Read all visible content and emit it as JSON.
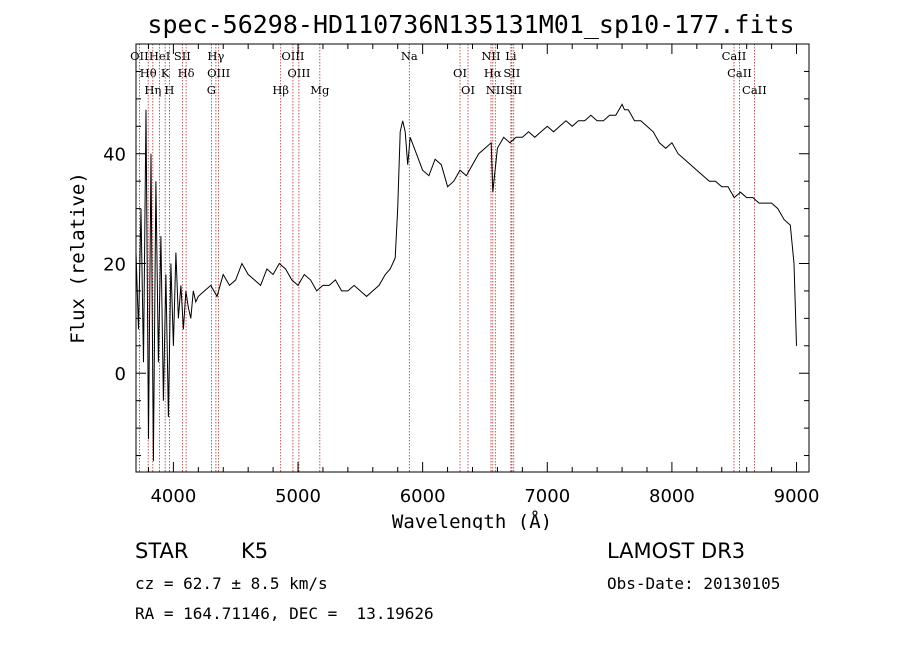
{
  "chart_data": {
    "type": "line",
    "title": "spec-56298-HD110736N135131M01_sp10-177.fits",
    "xlabel": "Wavelength (Å)",
    "ylabel": "Flux (relative)",
    "xlim": [
      3700,
      9100
    ],
    "ylim": [
      -18,
      60
    ],
    "xticks": [
      4000,
      5000,
      6000,
      7000,
      8000,
      9000
    ],
    "yticks": [
      0,
      20,
      40
    ],
    "series": [
      {
        "x": [
          3700,
          3720,
          3740,
          3760,
          3780,
          3800,
          3820,
          3840,
          3860,
          3880,
          3900,
          3920,
          3940,
          3960,
          3980,
          4000,
          4020,
          4040,
          4060,
          4080,
          4100,
          4120,
          4140,
          4160,
          4180,
          4200,
          4250,
          4300,
          4350,
          4400,
          4450,
          4500,
          4550,
          4600,
          4650,
          4700,
          4750,
          4800,
          4850,
          4900,
          4950,
          5000,
          5050,
          5100,
          5150,
          5200,
          5250,
          5300,
          5350,
          5400,
          5450,
          5500,
          5550,
          5600,
          5650,
          5700,
          5740,
          5780,
          5800,
          5820,
          5840,
          5860,
          5880,
          5900,
          5950,
          6000,
          6050,
          6100,
          6150,
          6200,
          6250,
          6300,
          6350,
          6400,
          6450,
          6500,
          6550,
          6563,
          6600,
          6650,
          6700,
          6750,
          6800,
          6850,
          6900,
          6950,
          7000,
          7050,
          7100,
          7150,
          7200,
          7250,
          7300,
          7350,
          7400,
          7450,
          7500,
          7550,
          7600,
          7620,
          7650,
          7700,
          7750,
          7800,
          7850,
          7900,
          7950,
          8000,
          8050,
          8100,
          8150,
          8200,
          8250,
          8300,
          8350,
          8400,
          8450,
          8500,
          8550,
          8600,
          8650,
          8700,
          8750,
          8800,
          8850,
          8900,
          8950,
          8980,
          9000
        ],
        "y": [
          22,
          8,
          30,
          2,
          48,
          -12,
          40,
          -16,
          35,
          2,
          25,
          -5,
          18,
          -8,
          20,
          5,
          22,
          10,
          16,
          8,
          15,
          12,
          10,
          15,
          13,
          14,
          15,
          16,
          14,
          18,
          16,
          17,
          20,
          18,
          17,
          16,
          19,
          18,
          20,
          19,
          17,
          16,
          18,
          17,
          15,
          16,
          16,
          17,
          15,
          15,
          16,
          15,
          14,
          15,
          16,
          18,
          19,
          21,
          30,
          44,
          46,
          44,
          38,
          43,
          40,
          37,
          36,
          39,
          38,
          34,
          35,
          37,
          36,
          38,
          40,
          41,
          42,
          33,
          41,
          43,
          42,
          43,
          43,
          44,
          43,
          44,
          45,
          44,
          45,
          46,
          45,
          46,
          46,
          47,
          46,
          46,
          47,
          47,
          49,
          48,
          48,
          46,
          46,
          45,
          44,
          42,
          41,
          42,
          40,
          39,
          38,
          37,
          36,
          35,
          35,
          34,
          34,
          32,
          33,
          32,
          32,
          31,
          31,
          31,
          30,
          28,
          27,
          20,
          5
        ]
      }
    ],
    "line_markers": [
      {
        "w": 3727,
        "label": "OII"
      },
      {
        "w": 3798,
        "label": "Hθ"
      },
      {
        "w": 3835,
        "label": "Hη"
      },
      {
        "w": 3889,
        "label": "HeI"
      },
      {
        "w": 3934,
        "label": "K"
      },
      {
        "w": 3968,
        "label": "H"
      },
      {
        "w": 4072,
        "label": "SII"
      },
      {
        "w": 4102,
        "label": "Hδ"
      },
      {
        "w": 4305,
        "label": "G"
      },
      {
        "w": 4341,
        "label": "Hγ"
      },
      {
        "w": 4363,
        "label": "OIII"
      },
      {
        "w": 4861,
        "label": "Hβ"
      },
      {
        "w": 4959,
        "label": "OIII"
      },
      {
        "w": 5007,
        "label": "OIII"
      },
      {
        "w": 5175,
        "label": "Mg"
      },
      {
        "w": 5893,
        "label": "Na"
      },
      {
        "w": 6300,
        "label": "OI"
      },
      {
        "w": 6364,
        "label": "OI"
      },
      {
        "w": 6548,
        "label": "NII"
      },
      {
        "w": 6563,
        "label": "Hα"
      },
      {
        "w": 6583,
        "label": "NII"
      },
      {
        "w": 6708,
        "label": "Li"
      },
      {
        "w": 6716,
        "label": "SII"
      },
      {
        "w": 6731,
        "label": "SII"
      },
      {
        "w": 8498,
        "label": "CaII"
      },
      {
        "w": 8542,
        "label": "CaII"
      },
      {
        "w": 8662,
        "label": "CaII"
      }
    ]
  },
  "info": {
    "class_label": "STAR",
    "subclass": "K5",
    "survey": "LAMOST DR3",
    "cz": "cz = 62.7 ± 8.5 km/s",
    "obs_date": "Obs-Date: 20130105",
    "coords": "RA = 164.71146, DEC =  13.19626"
  },
  "colors": {
    "spectrum": "#000000",
    "line_markers": "#b03030"
  }
}
